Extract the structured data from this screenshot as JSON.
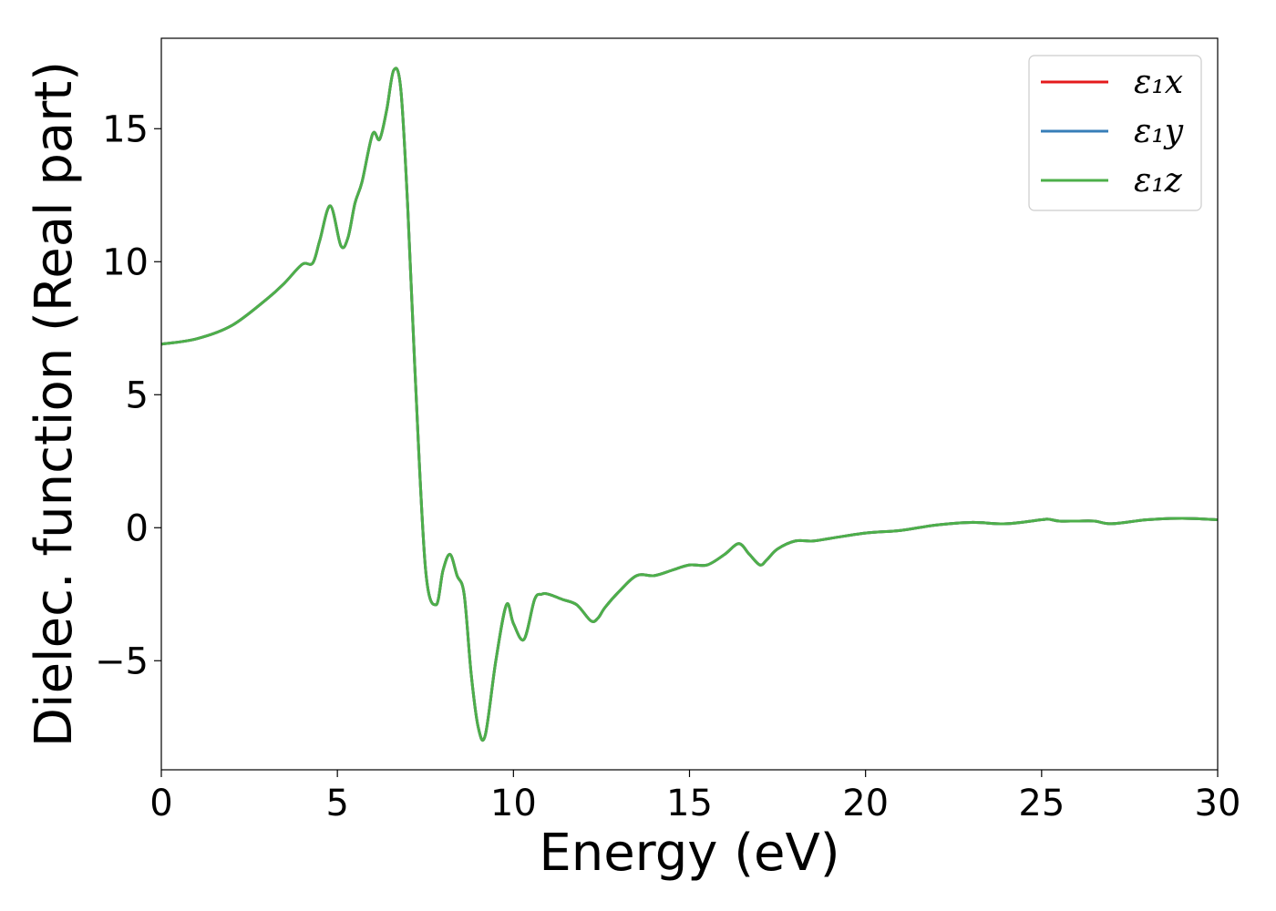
{
  "chart_data": {
    "type": "line",
    "title": "",
    "xlabel": "Energy (eV)",
    "ylabel": "Dielec. function (Real part)",
    "xlim": [
      0,
      30
    ],
    "ylim": [
      -9.1,
      18.4
    ],
    "x_ticks": [
      "0",
      "5",
      "10",
      "15",
      "20",
      "25",
      "30"
    ],
    "y_ticks": [
      "−5",
      "0",
      "5",
      "10",
      "15"
    ],
    "grid": false,
    "legend_position": "top-right",
    "x": [
      0,
      1,
      2,
      3,
      3.5,
      4,
      4.3,
      4.5,
      4.8,
      5.1,
      5.3,
      5.5,
      5.7,
      6,
      6.2,
      6.4,
      6.6,
      6.8,
      7.0,
      7.2,
      7.5,
      7.8,
      8.0,
      8.2,
      8.4,
      8.6,
      8.8,
      9.0,
      9.2,
      9.5,
      9.8,
      10.0,
      10.3,
      10.6,
      10.8,
      11.0,
      11.4,
      11.8,
      12.2,
      12.4,
      12.6,
      13.0,
      13.5,
      14.0,
      14.5,
      15.0,
      15.5,
      16.0,
      16.4,
      16.7,
      17.0,
      17.2,
      17.5,
      18,
      18.5,
      19,
      20,
      21,
      22,
      23,
      24,
      25,
      25.2,
      25.5,
      26,
      26.5,
      27,
      28,
      29,
      30
    ],
    "series": [
      {
        "name": "ε₁x",
        "color": "#e41a1c",
        "values": [
          6.9,
          7.1,
          7.6,
          8.6,
          9.2,
          9.9,
          9.95,
          10.8,
          12.1,
          10.6,
          10.9,
          12.2,
          13.0,
          14.8,
          14.6,
          15.7,
          17.2,
          16.5,
          12.0,
          6.0,
          -1.5,
          -2.9,
          -1.6,
          -1.0,
          -1.8,
          -2.5,
          -5.5,
          -7.5,
          -7.8,
          -5.0,
          -2.9,
          -3.6,
          -4.2,
          -2.7,
          -2.5,
          -2.5,
          -2.7,
          -2.9,
          -3.5,
          -3.4,
          -3.0,
          -2.4,
          -1.8,
          -1.8,
          -1.6,
          -1.4,
          -1.4,
          -1.0,
          -0.6,
          -1.0,
          -1.4,
          -1.2,
          -0.8,
          -0.5,
          -0.5,
          -0.4,
          -0.2,
          -0.1,
          0.1,
          0.2,
          0.15,
          0.3,
          0.32,
          0.25,
          0.25,
          0.25,
          0.15,
          0.3,
          0.35,
          0.3
        ]
      },
      {
        "name": "ε₁y",
        "color": "#377eb8",
        "values": [
          6.9,
          7.1,
          7.6,
          8.6,
          9.2,
          9.9,
          9.95,
          10.8,
          12.1,
          10.6,
          10.9,
          12.2,
          13.0,
          14.8,
          14.6,
          15.7,
          17.2,
          16.5,
          12.0,
          6.0,
          -1.5,
          -2.9,
          -1.6,
          -1.0,
          -1.8,
          -2.5,
          -5.5,
          -7.5,
          -7.8,
          -5.0,
          -2.9,
          -3.6,
          -4.2,
          -2.7,
          -2.5,
          -2.5,
          -2.7,
          -2.9,
          -3.5,
          -3.4,
          -3.0,
          -2.4,
          -1.8,
          -1.8,
          -1.6,
          -1.4,
          -1.4,
          -1.0,
          -0.6,
          -1.0,
          -1.4,
          -1.2,
          -0.8,
          -0.5,
          -0.5,
          -0.4,
          -0.2,
          -0.1,
          0.1,
          0.2,
          0.15,
          0.3,
          0.32,
          0.25,
          0.25,
          0.25,
          0.15,
          0.3,
          0.35,
          0.3
        ]
      },
      {
        "name": "ε₁z",
        "color": "#4daf4a",
        "values": [
          6.9,
          7.1,
          7.6,
          8.6,
          9.2,
          9.9,
          9.95,
          10.8,
          12.1,
          10.6,
          10.9,
          12.2,
          13.0,
          14.8,
          14.6,
          15.7,
          17.2,
          16.5,
          12.0,
          6.0,
          -1.5,
          -2.9,
          -1.6,
          -1.0,
          -1.8,
          -2.5,
          -5.5,
          -7.5,
          -7.8,
          -5.0,
          -2.9,
          -3.6,
          -4.2,
          -2.7,
          -2.5,
          -2.5,
          -2.7,
          -2.9,
          -3.5,
          -3.4,
          -3.0,
          -2.4,
          -1.8,
          -1.8,
          -1.6,
          -1.4,
          -1.4,
          -1.0,
          -0.6,
          -1.0,
          -1.4,
          -1.2,
          -0.8,
          -0.5,
          -0.5,
          -0.4,
          -0.2,
          -0.1,
          0.1,
          0.2,
          0.15,
          0.3,
          0.32,
          0.25,
          0.25,
          0.25,
          0.15,
          0.3,
          0.35,
          0.3
        ]
      }
    ]
  }
}
